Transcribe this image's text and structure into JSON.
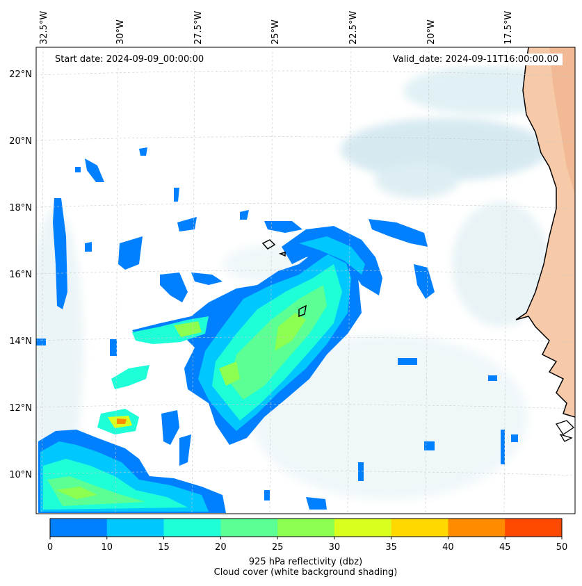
{
  "map": {
    "projection_note": "",
    "top_labels": [
      "32.5°W",
      "30°W",
      "27.5°W",
      "25°W",
      "22.5°W",
      "20°W",
      "17.5°W"
    ],
    "left_labels": [
      "22°N",
      "20°N",
      "18°N",
      "16°N",
      "14°N",
      "12°N",
      "10°N"
    ],
    "start_date": "Start date: 2024-09-09_00:00:00",
    "valid_date": "Valid_date: 2024-09-11T16:00:00.00"
  },
  "colorbar": {
    "ticks": [
      "0",
      "10",
      "15",
      "20",
      "25",
      "30",
      "35",
      "40",
      "45",
      "50"
    ],
    "colors": [
      "#0080ff",
      "#00c8ff",
      "#1effd8",
      "#5cff94",
      "#8cff50",
      "#d8ff1e",
      "#ffd800",
      "#ff8c00",
      "#ff4800"
    ],
    "label_line1": "925 hPa reflectivity (dbz)",
    "label_line2": "Cloud cover (white background shading)"
  },
  "colors": {
    "land": "#f6c9a8",
    "cloud": "#d4e9ef",
    "coast": "#000000",
    "grid": "#cccccc"
  }
}
